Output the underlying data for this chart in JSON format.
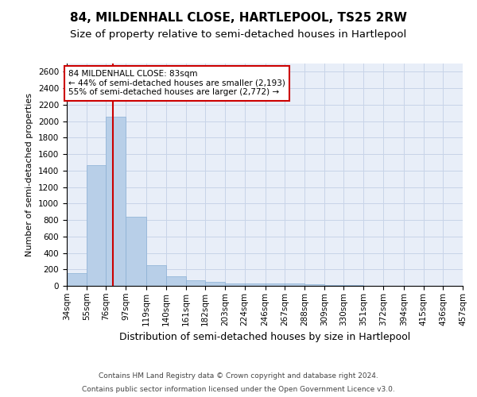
{
  "title1": "84, MILDENHALL CLOSE, HARTLEPOOL, TS25 2RW",
  "title2": "Size of property relative to semi-detached houses in Hartlepool",
  "xlabel": "Distribution of semi-detached houses by size in Hartlepool",
  "ylabel": "Number of semi-detached properties",
  "footer1": "Contains HM Land Registry data © Crown copyright and database right 2024.",
  "footer2": "Contains public sector information licensed under the Open Government Licence v3.0.",
  "bins": [
    "34sqm",
    "55sqm",
    "76sqm",
    "97sqm",
    "119sqm",
    "140sqm",
    "161sqm",
    "182sqm",
    "203sqm",
    "224sqm",
    "246sqm",
    "267sqm",
    "288sqm",
    "309sqm",
    "330sqm",
    "351sqm",
    "372sqm",
    "394sqm",
    "415sqm",
    "436sqm",
    "457sqm"
  ],
  "bin_edges": [
    34,
    55,
    76,
    97,
    119,
    140,
    161,
    182,
    203,
    224,
    246,
    267,
    288,
    309,
    330,
    351,
    372,
    394,
    415,
    436,
    457
  ],
  "values": [
    150,
    1470,
    2050,
    835,
    255,
    115,
    65,
    45,
    30,
    30,
    30,
    30,
    20,
    10,
    5,
    3,
    2,
    1,
    1,
    0,
    0
  ],
  "bar_color": "#b8cfe8",
  "bar_edge_color": "#8aafd4",
  "property_size": 83,
  "red_line_color": "#cc0000",
  "annotation_line1": "84 MILDENHALL CLOSE: 83sqm",
  "annotation_line2": "← 44% of semi-detached houses are smaller (2,193)",
  "annotation_line3": "55% of semi-detached houses are larger (2,772) →",
  "annotation_box_color": "#ffffff",
  "annotation_box_edge": "#cc0000",
  "ylim": [
    0,
    2700
  ],
  "yticks": [
    0,
    200,
    400,
    600,
    800,
    1000,
    1200,
    1400,
    1600,
    1800,
    2000,
    2200,
    2400,
    2600
  ],
  "grid_color": "#c8d4e8",
  "background_color": "#e8eef8",
  "title1_fontsize": 11,
  "title2_fontsize": 9.5,
  "xlabel_fontsize": 9,
  "ylabel_fontsize": 8,
  "tick_fontsize": 7.5,
  "footer_fontsize": 6.5
}
